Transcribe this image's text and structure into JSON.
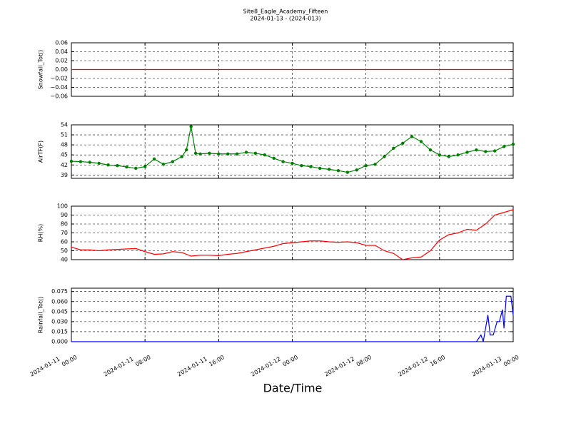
{
  "chart_data": [
    {
      "type": "line",
      "title": "Site8_Eagle_Academy_Fifteen",
      "subtitle": "2024-01-13 - (2024-013)",
      "y_label": "Snowfall_Tot()",
      "x": [
        "2024-01-11 00:00",
        "2024-01-13 00:00"
      ],
      "series": [
        {
          "color": "#ff0000",
          "values": [
            0,
            0
          ]
        }
      ],
      "xlim": [
        "2024-01-11 00:00",
        "2024-01-13 00:00"
      ],
      "xticks": [
        "2024-01-11 00:00",
        "2024-01-11 08:00",
        "2024-01-11 16:00",
        "2024-01-12 00:00",
        "2024-01-12 08:00",
        "2024-01-12 16:00",
        "2024-01-13 00:00"
      ],
      "ylim": [
        -0.06,
        0.06
      ],
      "yticks": [
        {
          "value": -0.06,
          "label": "−0.06"
        },
        {
          "value": -0.04,
          "label": "−0.04"
        },
        {
          "value": -0.02,
          "label": "−0.02"
        },
        {
          "value": 0,
          "label": "0.00"
        },
        0.02,
        0.04,
        0.06
      ],
      "grid": true
    },
    {
      "type": "line",
      "y_label": "AirTF(F)",
      "markers": true,
      "x": [
        "2024-01-11 00:00",
        "2024-01-11 01:00",
        "2024-01-11 02:00",
        "2024-01-11 03:00",
        "2024-01-11 04:00",
        "2024-01-11 05:00",
        "2024-01-11 06:00",
        "2024-01-11 07:00",
        "2024-01-11 08:00",
        "2024-01-11 09:00",
        "2024-01-11 10:00",
        "2024-01-11 11:00",
        "2024-01-11 12:00",
        "2024-01-11 12:30",
        "2024-01-11 13:00",
        "2024-01-11 13:30",
        "2024-01-11 14:00",
        "2024-01-11 15:00",
        "2024-01-11 16:00",
        "2024-01-11 17:00",
        "2024-01-11 18:00",
        "2024-01-11 19:00",
        "2024-01-11 20:00",
        "2024-01-11 21:00",
        "2024-01-11 22:00",
        "2024-01-11 23:00",
        "2024-01-12 00:00",
        "2024-01-12 01:00",
        "2024-01-12 02:00",
        "2024-01-12 03:00",
        "2024-01-12 04:00",
        "2024-01-12 05:00",
        "2024-01-12 06:00",
        "2024-01-12 07:00",
        "2024-01-12 08:00",
        "2024-01-12 09:00",
        "2024-01-12 10:00",
        "2024-01-12 11:00",
        "2024-01-12 12:00",
        "2024-01-12 13:00",
        "2024-01-12 14:00",
        "2024-01-12 15:00",
        "2024-01-12 16:00",
        "2024-01-12 17:00",
        "2024-01-12 18:00",
        "2024-01-12 19:00",
        "2024-01-12 20:00",
        "2024-01-12 21:00",
        "2024-01-12 22:00",
        "2024-01-12 23:00",
        "2024-01-13 00:00"
      ],
      "series": [
        {
          "color": "#007f00",
          "values": [
            43.1,
            43.0,
            42.8,
            42.5,
            42.0,
            41.8,
            41.4,
            41.0,
            41.5,
            43.8,
            42.2,
            43.0,
            44.5,
            46.5,
            53.5,
            45.5,
            45.3,
            45.5,
            45.3,
            45.3,
            45.3,
            45.8,
            45.5,
            45.0,
            44.0,
            43.0,
            42.5,
            41.8,
            41.5,
            41.0,
            40.7,
            40.3,
            39.8,
            40.5,
            41.8,
            42.2,
            44.5,
            47.0,
            48.5,
            50.5,
            49.0,
            46.5,
            45.0,
            44.5,
            45.0,
            45.8,
            46.5,
            46.0,
            46.2,
            47.5,
            48.2
          ]
        }
      ],
      "xlim": [
        "2024-01-11 00:00",
        "2024-01-13 00:00"
      ],
      "xticks": [
        "2024-01-11 00:00",
        "2024-01-11 08:00",
        "2024-01-11 16:00",
        "2024-01-12 00:00",
        "2024-01-12 08:00",
        "2024-01-12 16:00",
        "2024-01-13 00:00"
      ],
      "ylim": [
        38,
        54
      ],
      "yticks": [
        39,
        42,
        45,
        48,
        51,
        54
      ],
      "grid": true
    },
    {
      "type": "line",
      "y_label": "RH(%)",
      "x": [
        "2024-01-11 00:00",
        "2024-01-11 01:00",
        "2024-01-11 02:00",
        "2024-01-11 03:00",
        "2024-01-11 04:00",
        "2024-01-11 05:00",
        "2024-01-11 06:00",
        "2024-01-11 07:00",
        "2024-01-11 08:00",
        "2024-01-11 09:00",
        "2024-01-11 10:00",
        "2024-01-11 11:00",
        "2024-01-11 12:00",
        "2024-01-11 13:00",
        "2024-01-11 14:00",
        "2024-01-11 15:00",
        "2024-01-11 16:00",
        "2024-01-11 17:00",
        "2024-01-11 18:00",
        "2024-01-11 19:00",
        "2024-01-11 20:00",
        "2024-01-11 21:00",
        "2024-01-11 22:00",
        "2024-01-11 23:00",
        "2024-01-12 00:00",
        "2024-01-12 01:00",
        "2024-01-12 02:00",
        "2024-01-12 03:00",
        "2024-01-12 04:00",
        "2024-01-12 05:00",
        "2024-01-12 06:00",
        "2024-01-12 07:00",
        "2024-01-12 08:00",
        "2024-01-12 09:00",
        "2024-01-12 10:00",
        "2024-01-12 11:00",
        "2024-01-12 12:00",
        "2024-01-12 13:00",
        "2024-01-12 14:00",
        "2024-01-12 15:00",
        "2024-01-12 16:00",
        "2024-01-12 17:00",
        "2024-01-12 18:00",
        "2024-01-12 19:00",
        "2024-01-12 20:00",
        "2024-01-12 21:00",
        "2024-01-12 22:00",
        "2024-01-12 23:00",
        "2024-01-13 00:00"
      ],
      "series": [
        {
          "color": "#ff0000",
          "values": [
            54,
            51,
            51,
            50,
            51,
            51.5,
            52,
            52.5,
            49,
            46,
            46.5,
            49,
            48,
            44,
            45,
            45,
            44.5,
            46,
            47,
            49,
            51,
            53,
            55,
            58,
            59,
            60,
            61,
            61,
            60,
            59.5,
            60,
            59,
            56,
            56,
            50,
            47,
            40,
            42,
            43,
            50,
            62,
            68,
            70,
            74,
            73,
            80,
            90,
            93,
            96
          ]
        }
      ],
      "xlim": [
        "2024-01-11 00:00",
        "2024-01-13 00:00"
      ],
      "xticks": [
        "2024-01-11 00:00",
        "2024-01-11 08:00",
        "2024-01-11 16:00",
        "2024-01-12 00:00",
        "2024-01-12 08:00",
        "2024-01-12 16:00",
        "2024-01-13 00:00"
      ],
      "ylim": [
        40,
        100
      ],
      "yticks": [
        40,
        50,
        60,
        70,
        80,
        90,
        100
      ],
      "grid": true
    },
    {
      "type": "line",
      "y_label": "Rainfall_Tot()",
      "x_label": "Date/Time",
      "x": [
        "2024-01-11 00:00",
        "2024-01-12 20:00",
        "2024-01-12 20:30",
        "2024-01-12 20:45",
        "2024-01-12 21:15",
        "2024-01-12 21:30",
        "2024-01-12 21:50",
        "2024-01-12 22:15",
        "2024-01-12 22:30",
        "2024-01-12 22:50",
        "2024-01-12 23:00",
        "2024-01-12 23:15",
        "2024-01-12 23:45",
        "2024-01-13 00:00"
      ],
      "series": [
        {
          "color": "#0000ff",
          "values": [
            0,
            0,
            0.01,
            0,
            0.04,
            0.01,
            0.01,
            0.03,
            0.03,
            0.048,
            0.02,
            0.068,
            0.068,
            0.04
          ]
        }
      ],
      "xlim": [
        "2024-01-11 00:00",
        "2024-01-13 00:00"
      ],
      "xticks": [
        "2024-01-11 00:00",
        "2024-01-11 08:00",
        "2024-01-11 16:00",
        "2024-01-12 00:00",
        "2024-01-12 08:00",
        "2024-01-12 16:00",
        "2024-01-13 00:00"
      ],
      "ylim": [
        0,
        0.08
      ],
      "yticks": [
        {
          "value": 0,
          "label": "0.000"
        },
        {
          "value": 0.015,
          "label": "0.015"
        },
        {
          "value": 0.03,
          "label": "0.030"
        },
        {
          "value": 0.045,
          "label": "0.045"
        },
        {
          "value": 0.06,
          "label": "0.060"
        },
        {
          "value": 0.075,
          "label": "0.075"
        }
      ],
      "grid": true
    }
  ]
}
